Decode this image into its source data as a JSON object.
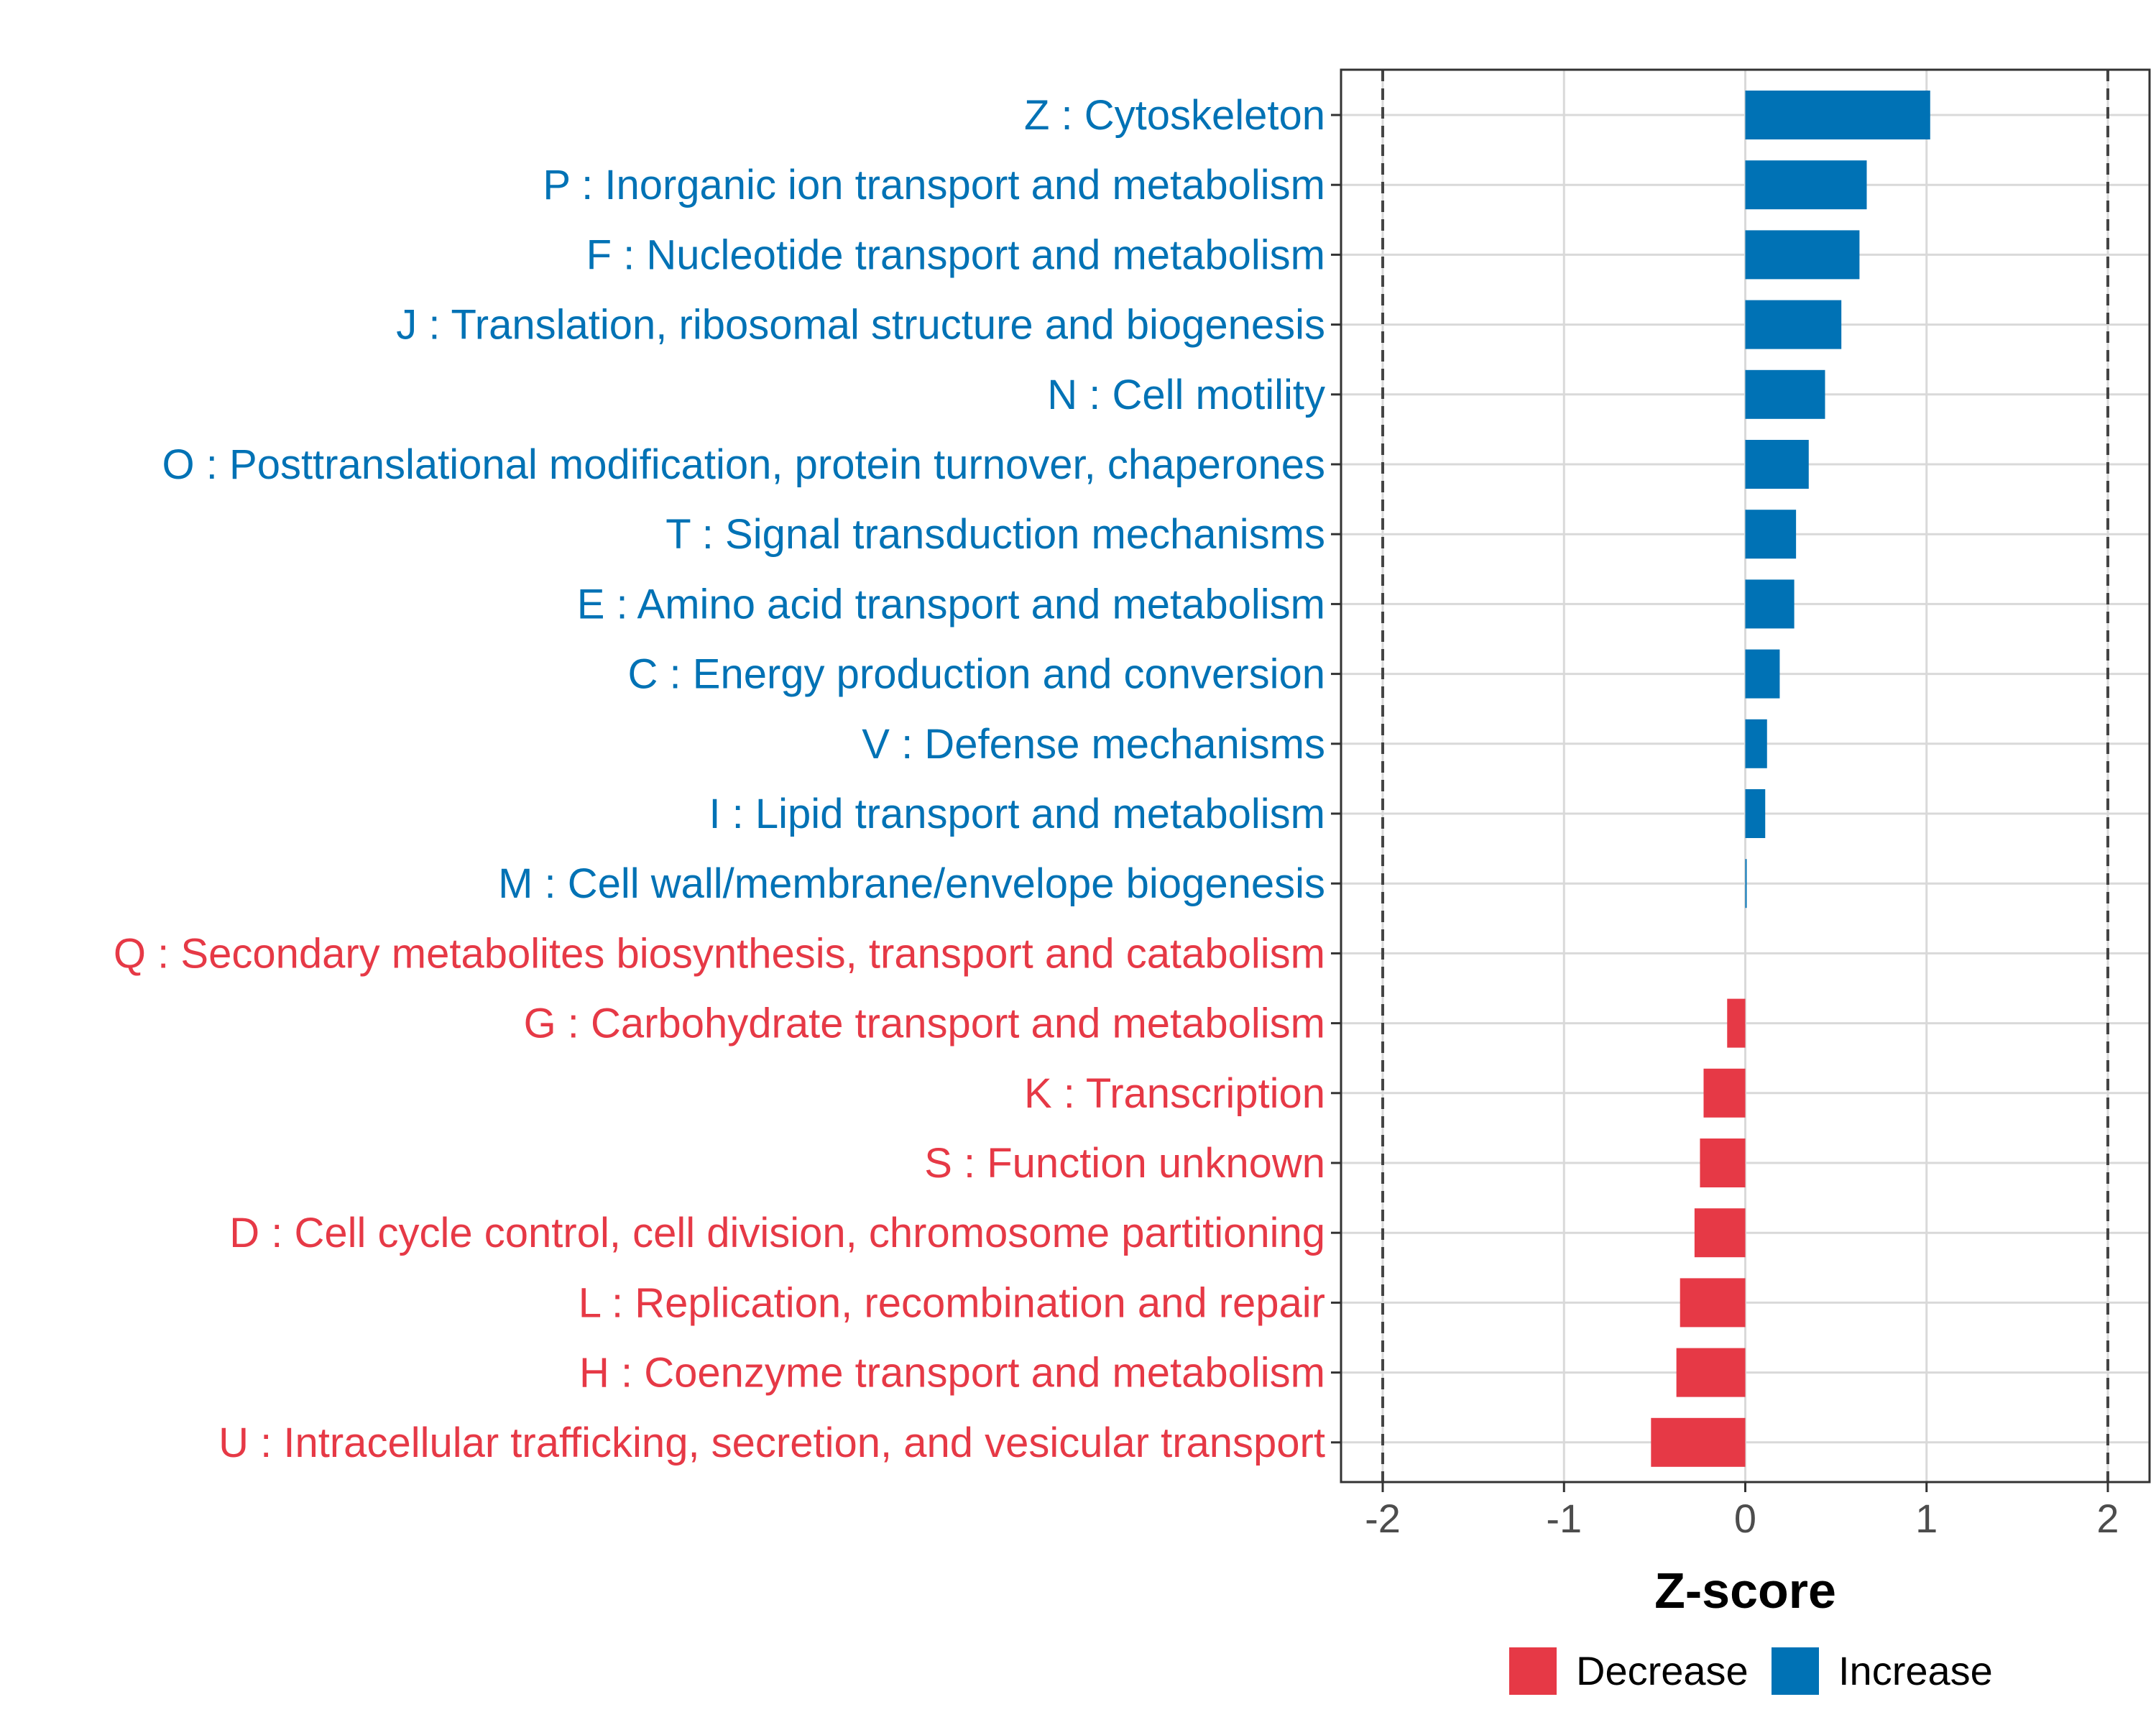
{
  "chart_data": {
    "type": "bar",
    "orientation": "horizontal",
    "xlabel": "Z-score",
    "xlim": [
      -2.23,
      2.23
    ],
    "xticks": [
      -2,
      -1,
      0,
      1,
      2
    ],
    "xtick_labels": [
      "-2",
      "-1",
      "0",
      "1",
      "2"
    ],
    "threshold_lines": [
      -2,
      2
    ],
    "grid": true,
    "legend_position": "bottom",
    "colors": {
      "Decrease": "#e63946",
      "Increase": "#0072b5",
      "grid": "#d9d9d9",
      "frame": "#333333",
      "threshold": "#444444"
    },
    "legend": [
      {
        "name": "Decrease",
        "color": "#e63946"
      },
      {
        "name": "Increase",
        "color": "#0072b5"
      }
    ],
    "categories": [
      "Z : Cytoskeleton",
      "P : Inorganic ion transport and metabolism",
      "F : Nucleotide transport and metabolism",
      "J : Translation, ribosomal structure and biogenesis",
      "N : Cell motility",
      "O : Posttranslational modification, protein turnover, chaperones",
      "T : Signal transduction mechanisms",
      "E : Amino acid transport and metabolism",
      "C : Energy production and conversion",
      "V : Defense mechanisms",
      "I : Lipid transport and metabolism",
      "M : Cell wall/membrane/envelope biogenesis",
      "Q : Secondary metabolites biosynthesis, transport and catabolism",
      "G : Carbohydrate transport and metabolism",
      "K : Transcription",
      "S : Function unknown",
      "D : Cell cycle control, cell division, chromosome partitioning",
      "L : Replication, recombination and repair",
      "H : Coenzyme transport and metabolism",
      "U : Intracellular trafficking, secretion, and vesicular transport"
    ],
    "values": [
      1.02,
      0.67,
      0.63,
      0.53,
      0.44,
      0.35,
      0.28,
      0.27,
      0.19,
      0.12,
      0.11,
      0.005,
      0.0,
      -0.1,
      -0.23,
      -0.25,
      -0.28,
      -0.36,
      -0.38,
      -0.52
    ],
    "direction": [
      "Increase",
      "Increase",
      "Increase",
      "Increase",
      "Increase",
      "Increase",
      "Increase",
      "Increase",
      "Increase",
      "Increase",
      "Increase",
      "Increase",
      "Decrease",
      "Decrease",
      "Decrease",
      "Decrease",
      "Decrease",
      "Decrease",
      "Decrease",
      "Decrease"
    ]
  }
}
